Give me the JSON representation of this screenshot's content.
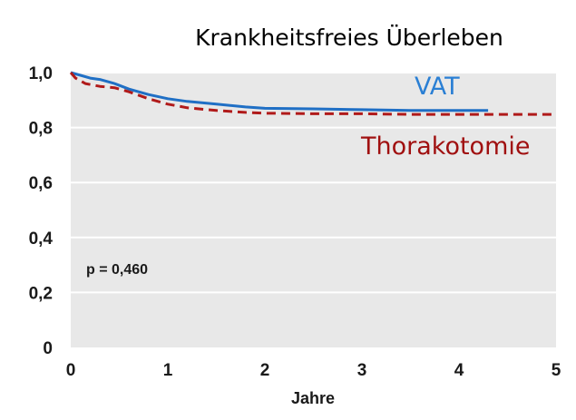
{
  "chart_data": {
    "type": "line",
    "title": "Krankheitsfreies Überleben",
    "xlabel": "Jahre",
    "ylabel": "",
    "xlim": [
      0,
      5
    ],
    "ylim": [
      0,
      1
    ],
    "x_ticks": [
      {
        "value": 0,
        "label": "0"
      },
      {
        "value": 1,
        "label": "1"
      },
      {
        "value": 2,
        "label": "2"
      },
      {
        "value": 3,
        "label": "3"
      },
      {
        "value": 4,
        "label": "4"
      },
      {
        "value": 5,
        "label": "5"
      }
    ],
    "y_ticks": [
      {
        "value": 0,
        "label": "0"
      },
      {
        "value": 0.2,
        "label": "0,2"
      },
      {
        "value": 0.4,
        "label": "0,4"
      },
      {
        "value": 0.6,
        "label": "0,6"
      },
      {
        "value": 0.8,
        "label": "0,8"
      },
      {
        "value": 1.0,
        "label": "1,0"
      }
    ],
    "grid": "horizontal",
    "background_color": "#e8e8e8",
    "annotation": "p = 0,460",
    "series": [
      {
        "name": "VAT",
        "color": "#1f6fc5",
        "style": "solid",
        "label_color": "#2a7fd4",
        "x": [
          0,
          0.1,
          0.2,
          0.3,
          0.45,
          0.6,
          0.8,
          1.0,
          1.2,
          1.5,
          1.8,
          2.0,
          2.5,
          3.0,
          3.5,
          4.0,
          4.3
        ],
        "y": [
          1.0,
          0.99,
          0.98,
          0.975,
          0.96,
          0.94,
          0.92,
          0.905,
          0.895,
          0.885,
          0.875,
          0.87,
          0.868,
          0.865,
          0.862,
          0.862,
          0.862
        ]
      },
      {
        "name": "Thorakotomie",
        "color": "#b01a1a",
        "style": "dashed",
        "label_color": "#a01010",
        "x": [
          0,
          0.05,
          0.15,
          0.3,
          0.45,
          0.6,
          0.8,
          1.0,
          1.2,
          1.5,
          1.8,
          2.0,
          2.5,
          3.0,
          3.5,
          4.0,
          4.5,
          5.0
        ],
        "y": [
          1.0,
          0.98,
          0.96,
          0.95,
          0.945,
          0.93,
          0.905,
          0.885,
          0.872,
          0.862,
          0.855,
          0.852,
          0.85,
          0.85,
          0.848,
          0.848,
          0.848,
          0.848
        ]
      }
    ]
  }
}
